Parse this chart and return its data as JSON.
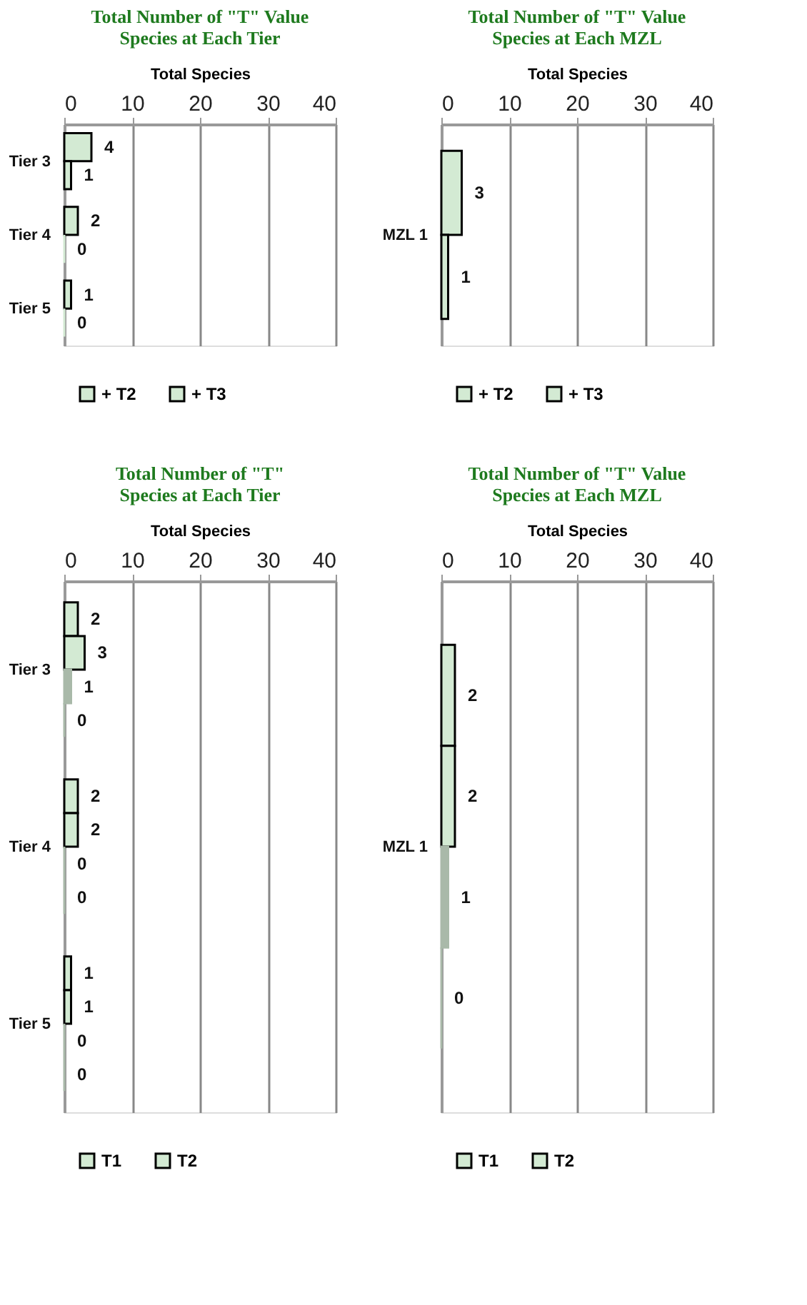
{
  "chart_data": [
    {
      "type": "bar",
      "orientation": "horizontal",
      "title": "Total Number of \"T\" Value\nSpecies at Each Tier",
      "xlabel": "Total Species",
      "categories": [
        "Tier 3",
        "Tier 4",
        "Tier 5"
      ],
      "series": [
        {
          "name": "+ T2",
          "color": "#d3ead3",
          "values": [
            4,
            2,
            1
          ]
        },
        {
          "name": "+ T3",
          "color": "#d3ead3",
          "values": [
            1,
            0,
            0
          ]
        }
      ],
      "xlim": [
        0,
        40
      ],
      "xticks": [
        0,
        10,
        20,
        30,
        40
      ],
      "grid": "x",
      "legend": "bottom",
      "data_labels": true
    },
    {
      "type": "bar",
      "orientation": "horizontal",
      "title": "Total Number of \"T\" Value\nSpecies at Each MZL",
      "xlabel": "Total Species",
      "categories": [
        "MZL 1"
      ],
      "series": [
        {
          "name": "+ T2",
          "color": "#d3ead3",
          "values": [
            3
          ]
        },
        {
          "name": "+ T3",
          "color": "#d3ead3",
          "values": [
            1
          ]
        }
      ],
      "xlim": [
        0,
        40
      ],
      "xticks": [
        0,
        10,
        20,
        30,
        40
      ],
      "grid": "x",
      "legend": "bottom",
      "data_labels": true
    },
    {
      "type": "bar",
      "orientation": "horizontal",
      "title": "Total Number of \"T\"\nSpecies at Each Tier",
      "xlabel": "Total Species",
      "categories": [
        "Tier 3",
        "Tier 4",
        "Tier 5"
      ],
      "series": [
        {
          "name": "T1",
          "color": "#d3ead3",
          "values": [
            2,
            2,
            1
          ]
        },
        {
          "name": "T2",
          "color": "#d3ead3",
          "values": [
            3,
            2,
            1
          ]
        },
        {
          "color": "#a9b9a9",
          "values": [
            1,
            0,
            0
          ]
        },
        {
          "color": "#a9b9a9",
          "values": [
            0,
            0,
            0
          ]
        }
      ],
      "xlim": [
        0,
        40
      ],
      "xticks": [
        0,
        10,
        20,
        30,
        40
      ],
      "grid": "x",
      "legend": "bottom",
      "data_labels": true
    },
    {
      "type": "bar",
      "orientation": "horizontal",
      "title": "Total Number of \"T\" Value\nSpecies at Each MZL",
      "xlabel": "Total Species",
      "categories": [
        "MZL 1"
      ],
      "series": [
        {
          "name": "T1",
          "color": "#d3ead3",
          "values": [
            2
          ]
        },
        {
          "name": "T2",
          "color": "#d3ead3",
          "values": [
            2
          ]
        },
        {
          "color": "#a9b9a9",
          "values": [
            1
          ]
        },
        {
          "color": "#a9b9a9",
          "values": [
            0
          ]
        }
      ],
      "xlim": [
        0,
        40
      ],
      "xticks": [
        0,
        10,
        20,
        30,
        40
      ],
      "grid": "x",
      "legend": "bottom",
      "data_labels": true
    }
  ]
}
